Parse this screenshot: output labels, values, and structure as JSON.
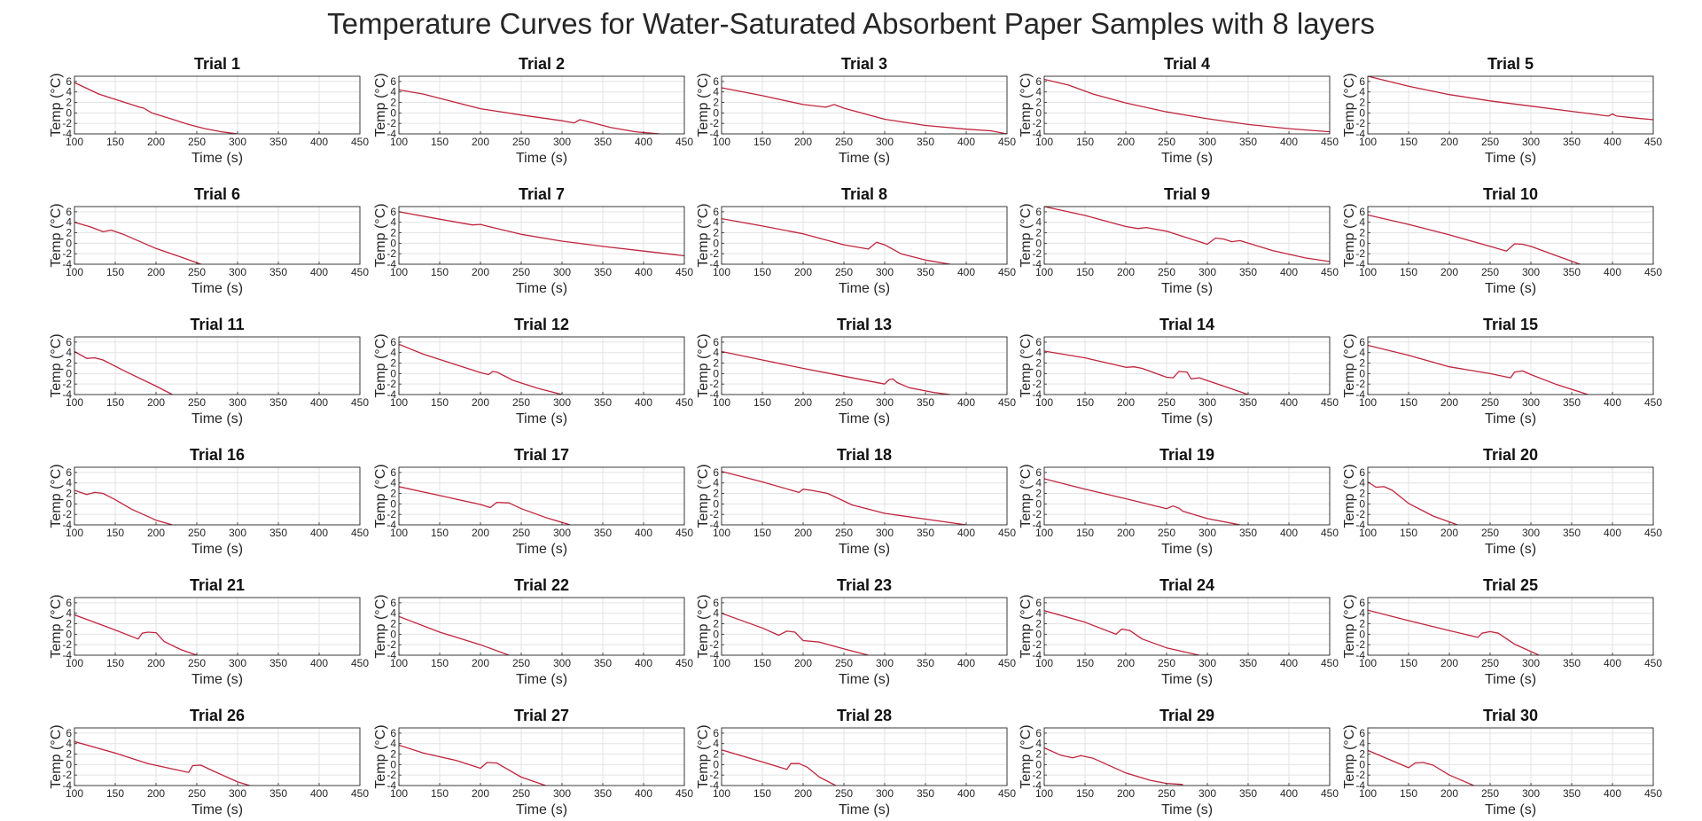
{
  "title": "Temperature Curves for Water-Saturated Absorbent Paper Samples with 8 layers",
  "axes": {
    "xlabel": "Time (s)",
    "ylabel": "Temp (°C)",
    "xlim": [
      100,
      450
    ],
    "ylim": [
      -4,
      7
    ],
    "xticks": [
      100,
      150,
      200,
      250,
      300,
      350,
      400,
      450
    ],
    "yticks": [
      -4,
      -2,
      0,
      2,
      4,
      6
    ],
    "grid": true,
    "line_color": "#c0243c"
  },
  "chart_data": [
    {
      "type": "line",
      "title": "Trial 1",
      "x": [
        100,
        130,
        160,
        180,
        185,
        195,
        220,
        240,
        260,
        280,
        300
      ],
      "y": [
        5.8,
        3.6,
        2.1,
        1.1,
        0.9,
        0.0,
        -1.2,
        -2.2,
        -3.0,
        -3.6,
        -4.0
      ]
    },
    {
      "type": "line",
      "title": "Trial 2",
      "x": [
        100,
        130,
        160,
        200,
        250,
        300,
        315,
        322,
        330,
        360,
        390,
        420
      ],
      "y": [
        4.4,
        3.6,
        2.4,
        0.8,
        -0.4,
        -1.5,
        -1.9,
        -1.3,
        -1.6,
        -2.8,
        -3.6,
        -4.0
      ]
    },
    {
      "type": "line",
      "title": "Trial 3",
      "x": [
        100,
        150,
        200,
        228,
        238,
        250,
        300,
        350,
        400,
        430,
        450
      ],
      "y": [
        4.8,
        3.3,
        1.6,
        1.1,
        1.6,
        0.9,
        -1.2,
        -2.4,
        -3.1,
        -3.4,
        -4.0
      ]
    },
    {
      "type": "line",
      "title": "Trial 4",
      "x": [
        100,
        130,
        160,
        200,
        250,
        300,
        350,
        400,
        450
      ],
      "y": [
        6.4,
        5.3,
        3.6,
        1.9,
        0.2,
        -1.1,
        -2.2,
        -3.0,
        -3.6
      ]
    },
    {
      "type": "line",
      "title": "Trial 5",
      "x": [
        100,
        150,
        200,
        250,
        300,
        350,
        395,
        400,
        405,
        430,
        450
      ],
      "y": [
        7.0,
        5.1,
        3.5,
        2.3,
        1.3,
        0.3,
        -0.6,
        -0.2,
        -0.6,
        -1.0,
        -1.3
      ]
    },
    {
      "type": "line",
      "title": "Trial 6",
      "x": [
        100,
        120,
        135,
        145,
        160,
        200,
        230,
        255
      ],
      "y": [
        4.0,
        3.1,
        2.2,
        2.5,
        1.7,
        -1.0,
        -2.6,
        -4.0
      ]
    },
    {
      "type": "line",
      "title": "Trial 7",
      "x": [
        100,
        150,
        190,
        200,
        210,
        250,
        300,
        350,
        400,
        450
      ],
      "y": [
        6.0,
        4.6,
        3.5,
        3.6,
        3.2,
        1.7,
        0.4,
        -0.6,
        -1.5,
        -2.4
      ]
    },
    {
      "type": "line",
      "title": "Trial 8",
      "x": [
        100,
        150,
        200,
        250,
        280,
        290,
        300,
        320,
        350,
        380
      ],
      "y": [
        4.7,
        3.3,
        1.8,
        -0.3,
        -1.1,
        0.2,
        -0.3,
        -2.0,
        -3.2,
        -4.0
      ]
    },
    {
      "type": "line",
      "title": "Trial 9",
      "x": [
        100,
        150,
        200,
        215,
        225,
        250,
        300,
        310,
        320,
        330,
        340,
        380,
        420,
        450
      ],
      "y": [
        7.0,
        5.3,
        3.2,
        2.8,
        3.0,
        2.3,
        -0.2,
        1.0,
        0.8,
        0.3,
        0.5,
        -1.4,
        -2.8,
        -3.5
      ]
    },
    {
      "type": "line",
      "title": "Trial 10",
      "x": [
        100,
        150,
        200,
        250,
        270,
        280,
        290,
        300,
        330,
        360
      ],
      "y": [
        5.4,
        3.6,
        1.6,
        -0.6,
        -1.5,
        -0.1,
        -0.2,
        -0.6,
        -2.3,
        -4.0
      ]
    },
    {
      "type": "line",
      "title": "Trial 11",
      "x": [
        100,
        115,
        125,
        135,
        160,
        200,
        220
      ],
      "y": [
        4.2,
        2.9,
        3.0,
        2.6,
        0.6,
        -2.4,
        -4.0
      ]
    },
    {
      "type": "line",
      "title": "Trial 12",
      "x": [
        100,
        130,
        160,
        200,
        210,
        215,
        220,
        240,
        270,
        300
      ],
      "y": [
        5.6,
        3.7,
        2.2,
        0.2,
        -0.2,
        0.4,
        0.3,
        -1.3,
        -2.8,
        -4.0
      ]
    },
    {
      "type": "line",
      "title": "Trial 13",
      "x": [
        100,
        150,
        200,
        250,
        300,
        305,
        310,
        315,
        330,
        360,
        380
      ],
      "y": [
        4.2,
        2.6,
        1.0,
        -0.5,
        -2.0,
        -1.2,
        -1.0,
        -1.7,
        -2.7,
        -3.6,
        -4.0
      ]
    },
    {
      "type": "line",
      "title": "Trial 14",
      "x": [
        100,
        150,
        200,
        210,
        220,
        250,
        258,
        265,
        275,
        280,
        290,
        320,
        350
      ],
      "y": [
        4.3,
        3.0,
        1.2,
        1.3,
        1.0,
        -0.7,
        -0.8,
        0.4,
        0.3,
        -1.0,
        -0.8,
        -2.4,
        -4.0
      ]
    },
    {
      "type": "line",
      "title": "Trial 15",
      "x": [
        100,
        150,
        200,
        250,
        275,
        280,
        290,
        300,
        330,
        370
      ],
      "y": [
        5.4,
        3.5,
        1.3,
        0.0,
        -0.8,
        0.3,
        0.5,
        -0.2,
        -2.0,
        -4.0
      ]
    },
    {
      "type": "line",
      "title": "Trial 16",
      "x": [
        100,
        115,
        125,
        135,
        150,
        170,
        200,
        220
      ],
      "y": [
        2.6,
        1.8,
        2.2,
        2.0,
        0.8,
        -1.0,
        -3.1,
        -4.0
      ]
    },
    {
      "type": "line",
      "title": "Trial 17",
      "x": [
        100,
        150,
        200,
        212,
        220,
        235,
        250,
        280,
        310
      ],
      "y": [
        3.3,
        1.6,
        -0.1,
        -0.7,
        0.3,
        0.2,
        -0.9,
        -2.6,
        -4.0
      ]
    },
    {
      "type": "line",
      "title": "Trial 18",
      "x": [
        100,
        150,
        195,
        200,
        210,
        230,
        260,
        300,
        350,
        400
      ],
      "y": [
        6.2,
        4.2,
        2.2,
        2.8,
        2.6,
        2.0,
        -0.2,
        -1.8,
        -2.9,
        -4.0
      ]
    },
    {
      "type": "line",
      "title": "Trial 19",
      "x": [
        100,
        150,
        200,
        250,
        258,
        265,
        270,
        300,
        340
      ],
      "y": [
        4.8,
        2.8,
        1.0,
        -0.9,
        -0.4,
        -0.8,
        -1.4,
        -2.8,
        -4.0
      ]
    },
    {
      "type": "line",
      "title": "Trial 20",
      "x": [
        100,
        110,
        120,
        130,
        150,
        180,
        210
      ],
      "y": [
        4.2,
        3.2,
        3.3,
        2.6,
        0.1,
        -2.3,
        -4.0
      ]
    },
    {
      "type": "line",
      "title": "Trial 21",
      "x": [
        100,
        150,
        178,
        183,
        190,
        200,
        210,
        230,
        250
      ],
      "y": [
        3.7,
        0.8,
        -0.9,
        0.2,
        0.4,
        0.3,
        -1.4,
        -2.9,
        -4.0
      ]
    },
    {
      "type": "line",
      "title": "Trial 22",
      "x": [
        100,
        150,
        200,
        235
      ],
      "y": [
        3.4,
        0.4,
        -2.0,
        -4.0
      ]
    },
    {
      "type": "line",
      "title": "Trial 23",
      "x": [
        100,
        150,
        170,
        180,
        190,
        200,
        220,
        250,
        280
      ],
      "y": [
        4.0,
        1.2,
        -0.2,
        0.6,
        0.4,
        -1.2,
        -1.5,
        -2.8,
        -4.0
      ]
    },
    {
      "type": "line",
      "title": "Trial 24",
      "x": [
        100,
        150,
        188,
        195,
        205,
        220,
        250,
        290
      ],
      "y": [
        4.5,
        2.3,
        0.0,
        1.0,
        0.7,
        -0.9,
        -2.6,
        -4.0
      ]
    },
    {
      "type": "line",
      "title": "Trial 25",
      "x": [
        100,
        150,
        200,
        235,
        240,
        250,
        260,
        280,
        310
      ],
      "y": [
        4.6,
        2.6,
        0.7,
        -0.6,
        0.2,
        0.5,
        0.2,
        -1.9,
        -4.0
      ]
    },
    {
      "type": "line",
      "title": "Trial 26",
      "x": [
        100,
        150,
        190,
        210,
        240,
        245,
        255,
        270,
        300,
        315
      ],
      "y": [
        4.4,
        2.2,
        0.2,
        -0.5,
        -1.5,
        -0.2,
        -0.1,
        -1.2,
        -3.3,
        -4.0
      ]
    },
    {
      "type": "line",
      "title": "Trial 27",
      "x": [
        100,
        130,
        170,
        200,
        208,
        220,
        230,
        250,
        280
      ],
      "y": [
        3.7,
        2.2,
        0.8,
        -0.7,
        0.4,
        0.3,
        -0.6,
        -2.4,
        -4.0
      ]
    },
    {
      "type": "line",
      "title": "Trial 28",
      "x": [
        100,
        150,
        180,
        185,
        195,
        205,
        220,
        240
      ],
      "y": [
        2.8,
        0.5,
        -0.9,
        0.2,
        0.2,
        -0.5,
        -2.4,
        -4.0
      ]
    },
    {
      "type": "line",
      "title": "Trial 29",
      "x": [
        100,
        120,
        135,
        145,
        160,
        200,
        230,
        250,
        270
      ],
      "y": [
        3.2,
        1.8,
        1.3,
        1.7,
        1.2,
        -1.6,
        -3.0,
        -3.6,
        -3.8
      ]
    },
    {
      "type": "line",
      "title": "Trial 30",
      "x": [
        100,
        150,
        158,
        168,
        180,
        200,
        230
      ],
      "y": [
        2.7,
        -0.6,
        0.3,
        0.4,
        -0.1,
        -2.0,
        -4.0
      ]
    }
  ]
}
